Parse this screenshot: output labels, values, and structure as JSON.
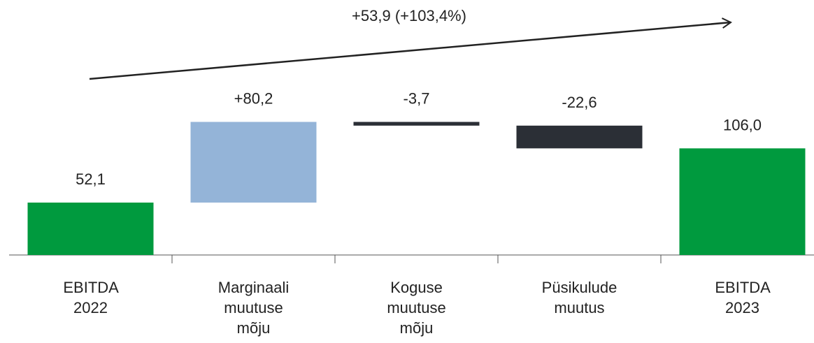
{
  "chart_data": {
    "type": "waterfall",
    "annotation": "+53,9 (+103,4%)",
    "categories": [
      "EBITDA 2022",
      "Marginaali muutuse mõju",
      "Koguse muutuse mõju",
      "Püsikulude muutus",
      "EBITDA 2023"
    ],
    "values": [
      52.1,
      80.2,
      -3.7,
      -22.6,
      106.0
    ],
    "value_labels": [
      "52,1",
      "+80,2",
      "-3,7",
      "-22,6",
      "106,0"
    ],
    "is_total": [
      true,
      false,
      false,
      false,
      true
    ],
    "colors": [
      "#009a3e",
      "#94b4d8",
      "#2b2f36",
      "#2b2f36",
      "#009a3e"
    ],
    "ylim": [
      0,
      253.5
    ]
  }
}
